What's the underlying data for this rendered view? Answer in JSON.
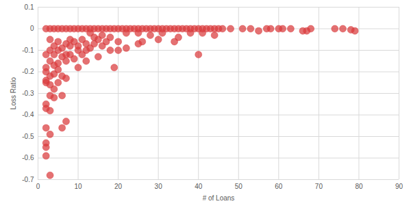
{
  "chart_data": {
    "type": "scatter",
    "x_label": "# of Loans",
    "y_label": "Loss Ratio",
    "color": "#d93a3c",
    "marker": "circle",
    "grid": true,
    "xlim": [
      0,
      90
    ],
    "xticks": [
      0,
      10,
      20,
      30,
      40,
      50,
      60,
      70,
      80,
      90
    ],
    "ylim": [
      -0.7,
      0.1
    ],
    "yticks": [
      -0.7,
      -0.6,
      -0.5,
      -0.4,
      -0.3,
      -0.2,
      -0.1,
      0,
      0.1
    ],
    "x": [
      2,
      2,
      2,
      2,
      2,
      2,
      2,
      2,
      2,
      2,
      2,
      3,
      3,
      3,
      3,
      3,
      3,
      3,
      3,
      3,
      4,
      4,
      4,
      4,
      4,
      4,
      5,
      5,
      5,
      5,
      5,
      6,
      6,
      6,
      6,
      6,
      7,
      7,
      7,
      7,
      7,
      8,
      8,
      8,
      9,
      9,
      10,
      10,
      10,
      11,
      11,
      12,
      12,
      12,
      13,
      13,
      14,
      14,
      15,
      15,
      16,
      16,
      17,
      18,
      18,
      19,
      20,
      20,
      22,
      22,
      25,
      25,
      26,
      28,
      30,
      31,
      34,
      35,
      38,
      40,
      41,
      44,
      2,
      3,
      4,
      5,
      6,
      7,
      8,
      9,
      10,
      11,
      12,
      13,
      14,
      15,
      16,
      17,
      18,
      19,
      20,
      21,
      22,
      23,
      24,
      25,
      26,
      27,
      28,
      29,
      30,
      31,
      32,
      33,
      34,
      35,
      36,
      37,
      38,
      39,
      40,
      41,
      42,
      43,
      44,
      45,
      46,
      48,
      51,
      53,
      55,
      57,
      58,
      60,
      61,
      63,
      66,
      67,
      68,
      74,
      76,
      78,
      79
    ],
    "values": [
      -0.24,
      -0.25,
      -0.35,
      -0.37,
      -0.46,
      -0.53,
      -0.55,
      -0.59,
      -0.12,
      -0.18,
      -0.2,
      -0.68,
      -0.49,
      -0.38,
      -0.31,
      -0.26,
      -0.22,
      -0.15,
      -0.1,
      -0.05,
      -0.28,
      -0.32,
      -0.21,
      -0.17,
      -0.12,
      -0.08,
      -0.16,
      -0.19,
      -0.25,
      -0.1,
      -0.06,
      -0.46,
      -0.31,
      -0.22,
      -0.13,
      -0.09,
      -0.43,
      -0.23,
      -0.15,
      -0.07,
      -0.12,
      -0.12,
      -0.08,
      -0.05,
      -0.14,
      -0.06,
      -0.18,
      -0.1,
      -0.08,
      -0.05,
      -0.12,
      -0.1,
      -0.07,
      -0.15,
      -0.09,
      -0.02,
      -0.07,
      -0.04,
      -0.13,
      -0.05,
      -0.08,
      -0.03,
      -0.06,
      -0.1,
      -0.04,
      -0.18,
      -0.1,
      -0.06,
      -0.09,
      -0.02,
      -0.07,
      -0.02,
      -0.06,
      -0.03,
      -0.05,
      -0.02,
      -0.06,
      -0.04,
      -0.02,
      -0.12,
      -0.02,
      -0.03,
      0,
      0,
      0,
      0,
      0,
      0,
      0,
      0,
      0,
      0,
      0,
      0,
      0,
      0,
      0,
      0,
      0,
      0,
      0,
      0,
      0,
      0,
      0,
      0,
      0,
      0,
      0,
      0,
      0,
      0,
      0,
      0,
      0,
      0,
      0,
      0,
      0,
      0,
      0,
      0,
      0,
      0,
      0,
      0,
      0,
      0,
      0,
      0,
      -0.01,
      0,
      0,
      0,
      0,
      0,
      -0.01,
      -0.01,
      0,
      0,
      0,
      -0.005,
      -0.01
    ]
  }
}
